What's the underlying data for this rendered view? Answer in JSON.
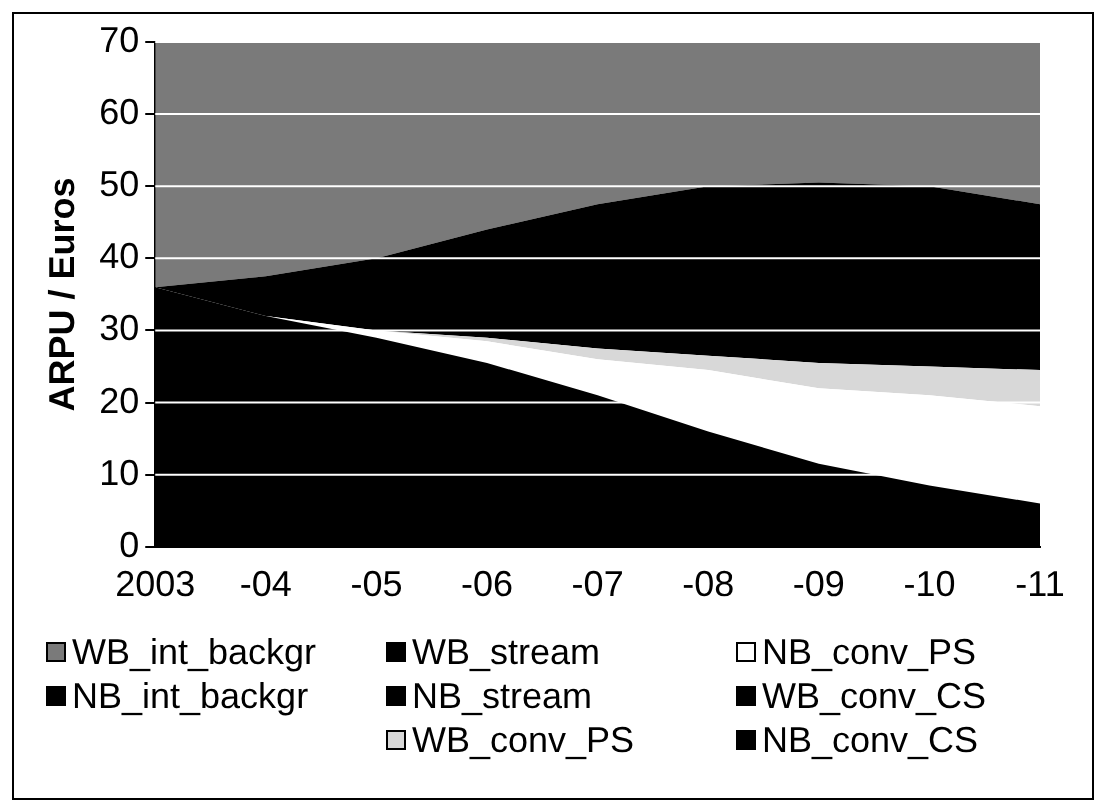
{
  "chart_data": {
    "type": "area",
    "stacked": true,
    "ylabel": "ARPU / Euros",
    "categories": [
      "2003",
      "-04",
      "-05",
      "-06",
      "-07",
      "-08",
      "-09",
      "-10",
      "-11"
    ],
    "ylim": [
      0,
      70
    ],
    "yticks": [
      0,
      10,
      20,
      30,
      40,
      50,
      60,
      70
    ],
    "grid": "y",
    "legend": "bottom",
    "series": [
      {
        "name": "NB_conv_CS",
        "color": "#000000",
        "values": [
          36,
          32,
          29,
          25.5,
          21,
          16,
          11.5,
          8.5,
          6
        ]
      },
      {
        "name": "WB_conv_CS",
        "color": "#000000",
        "values": [
          null,
          null,
          null,
          null,
          null,
          null,
          null,
          null,
          null
        ]
      },
      {
        "name": "NB_conv_PS",
        "color": "#ffffff",
        "values": [
          0,
          0,
          1,
          3,
          5,
          8.5,
          10.5,
          12.5,
          13.5
        ]
      },
      {
        "name": "WB_conv_PS",
        "color": "#d8d8d8",
        "values": [
          0,
          0,
          0,
          0.5,
          1.5,
          2,
          3.5,
          4,
          5
        ]
      },
      {
        "name": "NB_stream",
        "color": "#000000",
        "values": [
          null,
          null,
          null,
          null,
          null,
          null,
          null,
          null,
          null
        ]
      },
      {
        "name": "WB_stream",
        "color": "#000000",
        "values": [
          null,
          null,
          null,
          null,
          null,
          null,
          null,
          null,
          null
        ]
      },
      {
        "name": "NB_int_backgr",
        "color": "#000000",
        "values": [
          0,
          5.5,
          10,
          15,
          20,
          23.5,
          25,
          25,
          23
        ]
      },
      {
        "name": "WB_int_backgr",
        "color": "#7a7a7a",
        "values": [
          34,
          32.5,
          30,
          26,
          22.5,
          20,
          19.5,
          20,
          22.5
        ]
      }
    ]
  }
}
